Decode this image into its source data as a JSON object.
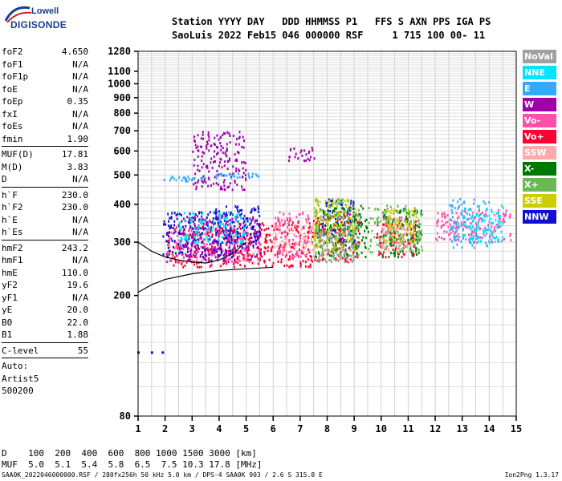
{
  "logo": {
    "top": "Lowell",
    "bottom": "DIGISONDE"
  },
  "header": {
    "line1": "Station YYYY DAY   DDD HHMMSS P1   FFS S AXN PPS IGA PS",
    "line2": "SaoLuis 2022 Feb15 046 000000 RSF     1 715 100 00- 11"
  },
  "params": {
    "group1": [
      {
        "k": "foF2",
        "v": "4.650"
      },
      {
        "k": "foF1",
        "v": "N/A"
      },
      {
        "k": "foF1p",
        "v": "N/A"
      },
      {
        "k": "foE",
        "v": "N/A"
      },
      {
        "k": "foEp",
        "v": "0.35"
      },
      {
        "k": "fxI",
        "v": "N/A"
      },
      {
        "k": "foEs",
        "v": "N/A"
      },
      {
        "k": "fmin",
        "v": "1.90"
      }
    ],
    "group2": [
      {
        "k": "MUF(D)",
        "v": "17.81"
      },
      {
        "k": "M(D)",
        "v": "3.83"
      },
      {
        "k": "D",
        "v": "N/A"
      }
    ],
    "group3": [
      {
        "k": "h`F",
        "v": "230.0"
      },
      {
        "k": "h`F2",
        "v": "230.0"
      },
      {
        "k": "h`E",
        "v": "N/A"
      },
      {
        "k": "h`Es",
        "v": "N/A"
      }
    ],
    "group4": [
      {
        "k": "hmF2",
        "v": "243.2"
      },
      {
        "k": "hmF1",
        "v": "N/A"
      },
      {
        "k": "hmE",
        "v": "110.0"
      },
      {
        "k": "yF2",
        "v": "19.6"
      },
      {
        "k": "yF1",
        "v": "N/A"
      },
      {
        "k": "yE",
        "v": "20.0"
      },
      {
        "k": "B0",
        "v": "22.0"
      },
      {
        "k": "B1",
        "v": "1.88"
      }
    ],
    "group5": [
      {
        "k": "C-level",
        "v": "55"
      }
    ],
    "auto": [
      "Auto:",
      "Artist5",
      "500200"
    ]
  },
  "legend": [
    {
      "label": "NoVal",
      "color": "#a0a0a0"
    },
    {
      "label": "NNE",
      "color": "#00e5ff"
    },
    {
      "label": "E",
      "color": "#33aaff"
    },
    {
      "label": "W",
      "color": "#a000a8"
    },
    {
      "label": "Vo-",
      "color": "#ff4fa8"
    },
    {
      "label": "Vo+",
      "color": "#ff0033"
    },
    {
      "label": "SSW",
      "color": "#ffaaaa"
    },
    {
      "label": "X-",
      "color": "#007700"
    },
    {
      "label": "X+",
      "color": "#66bb55"
    },
    {
      "label": "SSE",
      "color": "#cccc00"
    },
    {
      "label": "NNW",
      "color": "#1010d0"
    }
  ],
  "muf_table": {
    "line1": "D    100  200  400  600  800 1000 1500 3000 [km]",
    "line2": "MUF  5.0  5.1  5.4  5.8  6.5  7.5 10.3 17.8 [MHz]"
  },
  "footer": "SAA0K_2022046000000.RSF / 280fx256h 50 kHz 5.0 km / DPS-4 SAA0K 903 / 2.6 S 315.8 E",
  "version": "Ion2Png 1.3.17",
  "chart_data": {
    "type": "scatter",
    "title": "",
    "xlabel": "",
    "ylabel": "",
    "xlim": [
      1,
      15
    ],
    "ylim": [
      80,
      1280
    ],
    "x_ticks": [
      "1",
      "2",
      "3",
      "4",
      "5",
      "6",
      "7",
      "8",
      "9",
      "10",
      "11",
      "12",
      "13",
      "14",
      "15"
    ],
    "y_ticks": [
      {
        "v": 80,
        "label": "80"
      },
      {
        "v": 200,
        "label": "200"
      },
      {
        "v": 300,
        "label": "300"
      },
      {
        "v": 400,
        "label": "400"
      },
      {
        "v": 500,
        "label": "500"
      },
      {
        "v": 600,
        "label": "600"
      },
      {
        "v": 700,
        "label": "700"
      },
      {
        "v": 800,
        "label": "800"
      },
      {
        "v": 900,
        "label": "900"
      },
      {
        "v": 1000,
        "label": "1000"
      },
      {
        "v": 1100,
        "label": "1100"
      },
      {
        "v": 1280,
        "label": "1280"
      }
    ],
    "y_scale": "log",
    "grid": true,
    "series": [
      {
        "name": "Vo+",
        "color": "#ff0033",
        "regions": [
          [
            2.0,
            5.8,
            250,
            340
          ],
          [
            5.5,
            7.5,
            250,
            360
          ],
          [
            7.5,
            9.2,
            260,
            380
          ],
          [
            9.8,
            11.3,
            270,
            360
          ]
        ]
      },
      {
        "name": "Vo-",
        "color": "#ff4fa8",
        "regions": [
          [
            2.0,
            5.5,
            260,
            330
          ],
          [
            6.0,
            7.3,
            270,
            380
          ],
          [
            10.0,
            11.0,
            300,
            370
          ],
          [
            12.0,
            14.8,
            300,
            390
          ]
        ]
      },
      {
        "name": "NNW",
        "color": "#1010d0",
        "regions": [
          [
            1.9,
            4.5,
            270,
            380
          ],
          [
            3.8,
            5.5,
            290,
            400
          ],
          [
            7.8,
            9.0,
            290,
            420
          ]
        ]
      },
      {
        "name": "W",
        "color": "#a000a8",
        "regions": [
          [
            3.0,
            5.0,
            450,
            700
          ],
          [
            2.5,
            5.5,
            260,
            370
          ],
          [
            6.5,
            7.5,
            560,
            620
          ]
        ]
      },
      {
        "name": "E",
        "color": "#33aaff",
        "regions": [
          [
            1.9,
            3.5,
            480,
            500
          ],
          [
            3.8,
            5.5,
            490,
            510
          ],
          [
            12.5,
            14.0,
            290,
            420
          ]
        ]
      },
      {
        "name": "NNE",
        "color": "#00e5ff",
        "regions": [
          [
            2.5,
            5.0,
            300,
            380
          ],
          [
            13.0,
            14.5,
            300,
            400
          ]
        ]
      },
      {
        "name": "X-",
        "color": "#007700",
        "regions": [
          [
            7.5,
            9.5,
            270,
            400
          ],
          [
            10.0,
            11.5,
            270,
            390
          ]
        ]
      },
      {
        "name": "X+",
        "color": "#66bb55",
        "regions": [
          [
            7.5,
            9.2,
            260,
            420
          ],
          [
            9.5,
            11.5,
            280,
            400
          ]
        ]
      },
      {
        "name": "SSE",
        "color": "#cccc00",
        "regions": [
          [
            7.5,
            9.0,
            280,
            420
          ],
          [
            10.0,
            11.3,
            300,
            390
          ]
        ]
      },
      {
        "name": "SSW",
        "color": "#ffaaaa",
        "regions": [
          [
            6.0,
            7.5,
            280,
            350
          ],
          [
            10.0,
            11.0,
            280,
            340
          ]
        ]
      },
      {
        "name": "NoVal",
        "color": "#a0a0a0",
        "regions": [
          [
            7.5,
            9.0,
            260,
            330
          ]
        ]
      }
    ],
    "traces": [
      {
        "points": [
          [
            1.0,
            300
          ],
          [
            1.5,
            280
          ],
          [
            2.0,
            268
          ],
          [
            2.5,
            262
          ],
          [
            3.0,
            258
          ],
          [
            3.5,
            256
          ],
          [
            4.0,
            262
          ],
          [
            4.5,
            275
          ],
          [
            5.0,
            300
          ]
        ]
      },
      {
        "points": [
          [
            1.0,
            205
          ],
          [
            1.5,
            217
          ],
          [
            2.0,
            226
          ],
          [
            3.0,
            236
          ],
          [
            4.0,
            242
          ],
          [
            5.0,
            245
          ],
          [
            6.0,
            248
          ]
        ]
      }
    ],
    "isolated_points": [
      [
        1.0,
        130
      ],
      [
        1.5,
        130
      ],
      [
        1.9,
        130
      ]
    ]
  }
}
